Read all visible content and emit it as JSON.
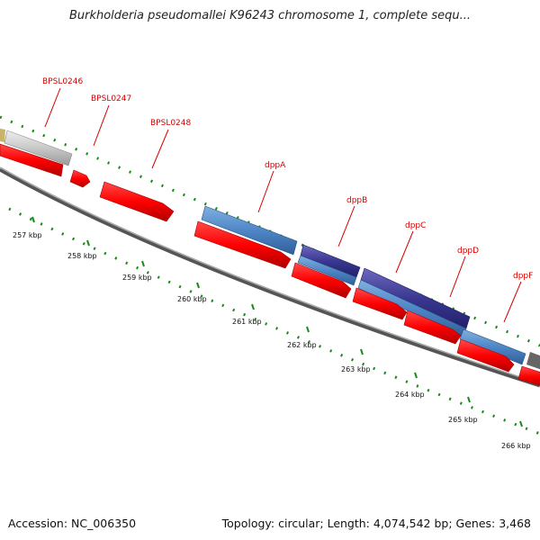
{
  "header": {
    "title": "Burkholderia pseudomallei K96243 chromosome 1, complete sequ..."
  },
  "footer": {
    "accession": "Accession: NC_006350",
    "topology": "Topology: circular; Length: 4,074,542 bp; Genes: 3,468"
  },
  "colors": {
    "cds_forward": "#ff0000",
    "cds_reverse": "#ff0000",
    "operon_blue": "#4f86c6",
    "operon_navy": "#3a3890",
    "misc_gray": "#c8c8c8",
    "ruler_ticks": "#1a8a1a",
    "label_red": "#d40000"
  },
  "tick_labels": [
    "257 kbp",
    "258 kbp",
    "259 kbp",
    "260 kbp",
    "261 kbp",
    "262 kbp",
    "263 kbp",
    "264 kbp",
    "265 kbp",
    "266 kbp"
  ],
  "gene_labels": [
    "BPSL0246",
    "BPSL0247",
    "BPSL0248",
    "dppA",
    "dppB",
    "dppC",
    "dppD",
    "dppF"
  ]
}
